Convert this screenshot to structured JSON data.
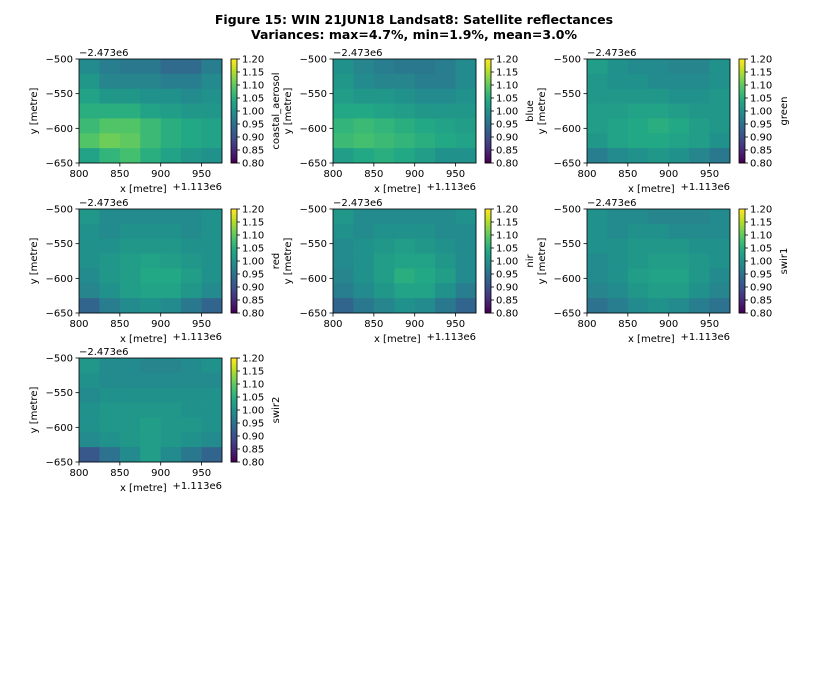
{
  "figure": {
    "title_line1": "Figure 15: WIN 21JUN18  Landsat8: Satellite reflectances",
    "title_line2": "Variances: max=4.7%, min=1.9%, mean=3.0%"
  },
  "chart_data": [
    {
      "type": "heatmap",
      "band": "coastal_aerosol",
      "xlabel": "x [metre]",
      "ylabel": "y [metre]",
      "x_offset_text": "+1.113e6",
      "y_offset_text": "−2.473e6",
      "xlim": [
        800,
        975
      ],
      "ylim": [
        -650,
        -500
      ],
      "x_ticks": [
        800,
        850,
        900,
        950
      ],
      "y_ticks": [
        -500,
        -550,
        -600,
        -650
      ],
      "colorbar": {
        "label": "coastal_aerosol",
        "vmin": 0.8,
        "vmax": 1.2,
        "ticks": [
          0.8,
          0.85,
          0.9,
          0.95,
          1.0,
          1.05,
          1.1,
          1.15,
          1.2
        ]
      },
      "values": [
        [
          0.99,
          0.97,
          0.96,
          0.96,
          0.94,
          0.94,
          0.97
        ],
        [
          1.01,
          0.98,
          0.98,
          0.98,
          0.97,
          0.97,
          0.99
        ],
        [
          1.03,
          1.01,
          1.01,
          1.0,
          1.0,
          0.99,
          1.0
        ],
        [
          1.05,
          1.05,
          1.05,
          1.03,
          1.02,
          1.01,
          1.01
        ],
        [
          1.07,
          1.09,
          1.09,
          1.07,
          1.05,
          1.04,
          1.03
        ],
        [
          1.09,
          1.11,
          1.1,
          1.07,
          1.05,
          1.04,
          1.03
        ],
        [
          1.03,
          1.06,
          1.08,
          1.05,
          1.03,
          1.01,
          1.0
        ]
      ]
    },
    {
      "type": "heatmap",
      "band": "blue",
      "xlabel": "x [metre]",
      "ylabel": "y [metre]",
      "x_offset_text": "+1.113e6",
      "y_offset_text": "−2.473e6",
      "xlim": [
        800,
        975
      ],
      "ylim": [
        -650,
        -500
      ],
      "x_ticks": [
        800,
        850,
        900,
        950
      ],
      "y_ticks": [
        -500,
        -550,
        -600,
        -650
      ],
      "colorbar": {
        "label": "blue",
        "vmin": 0.8,
        "vmax": 1.2,
        "ticks": [
          0.8,
          0.85,
          0.9,
          0.95,
          1.0,
          1.05,
          1.1,
          1.15,
          1.2
        ]
      },
      "values": [
        [
          1.0,
          0.98,
          0.97,
          0.96,
          0.96,
          0.97,
          0.99
        ],
        [
          1.01,
          0.99,
          0.98,
          0.98,
          0.97,
          0.97,
          0.99
        ],
        [
          1.02,
          1.01,
          1.01,
          1.0,
          0.99,
          0.99,
          1.0
        ],
        [
          1.04,
          1.04,
          1.03,
          1.02,
          1.01,
          1.01,
          1.01
        ],
        [
          1.06,
          1.07,
          1.06,
          1.05,
          1.04,
          1.03,
          1.02
        ],
        [
          1.07,
          1.08,
          1.07,
          1.06,
          1.05,
          1.04,
          1.03
        ],
        [
          1.02,
          1.04,
          1.05,
          1.04,
          1.02,
          1.0,
          1.0
        ]
      ]
    },
    {
      "type": "heatmap",
      "band": "green",
      "xlabel": "x [metre]",
      "ylabel": "y [metre]",
      "x_offset_text": "+1.113e6",
      "y_offset_text": "−2.473e6",
      "xlim": [
        800,
        975
      ],
      "ylim": [
        -650,
        -500
      ],
      "x_ticks": [
        800,
        850,
        900,
        950
      ],
      "y_ticks": [
        -500,
        -550,
        -600,
        -650
      ],
      "colorbar": {
        "label": "green",
        "vmin": 0.8,
        "vmax": 1.2,
        "ticks": [
          0.8,
          0.85,
          0.9,
          0.95,
          1.0,
          1.05,
          1.1,
          1.15,
          1.2
        ]
      },
      "values": [
        [
          1.02,
          1.0,
          0.99,
          0.99,
          0.98,
          0.98,
          1.0
        ],
        [
          1.01,
          1.0,
          1.0,
          0.99,
          0.99,
          0.99,
          1.0
        ],
        [
          1.01,
          1.01,
          1.01,
          1.01,
          1.0,
          1.0,
          1.01
        ],
        [
          1.02,
          1.02,
          1.03,
          1.03,
          1.02,
          1.01,
          1.01
        ],
        [
          1.02,
          1.03,
          1.04,
          1.05,
          1.04,
          1.02,
          1.01
        ],
        [
          1.01,
          1.03,
          1.04,
          1.04,
          1.03,
          1.02,
          1.0
        ],
        [
          0.97,
          0.99,
          1.0,
          1.01,
          1.0,
          0.98,
          0.96
        ]
      ]
    },
    {
      "type": "heatmap",
      "band": "red",
      "xlabel": "x [metre]",
      "ylabel": "y [metre]",
      "x_offset_text": "+1.113e6",
      "y_offset_text": "−2.473e6",
      "xlim": [
        800,
        975
      ],
      "ylim": [
        -650,
        -500
      ],
      "x_ticks": [
        800,
        850,
        900,
        950
      ],
      "y_ticks": [
        -500,
        -550,
        -600,
        -650
      ],
      "colorbar": {
        "label": "red",
        "vmin": 0.8,
        "vmax": 1.2,
        "ticks": [
          0.8,
          0.85,
          0.9,
          0.95,
          1.0,
          1.05,
          1.1,
          1.15,
          1.2
        ]
      },
      "values": [
        [
          1.01,
          0.99,
          0.99,
          0.99,
          0.99,
          0.99,
          1.0
        ],
        [
          1.0,
          0.99,
          1.0,
          1.0,
          1.0,
          0.99,
          1.0
        ],
        [
          1.0,
          1.0,
          1.01,
          1.01,
          1.01,
          1.0,
          1.0
        ],
        [
          1.0,
          1.01,
          1.02,
          1.03,
          1.02,
          1.01,
          1.0
        ],
        [
          0.99,
          1.01,
          1.02,
          1.04,
          1.04,
          1.02,
          1.0
        ],
        [
          0.98,
          1.0,
          1.02,
          1.03,
          1.03,
          1.01,
          0.99
        ],
        [
          0.93,
          0.97,
          0.99,
          1.0,
          0.99,
          0.96,
          0.93
        ]
      ]
    },
    {
      "type": "heatmap",
      "band": "nir",
      "xlabel": "x [metre]",
      "ylabel": "y [metre]",
      "x_offset_text": "+1.113e6",
      "y_offset_text": "−2.473e6",
      "xlim": [
        800,
        975
      ],
      "ylim": [
        -650,
        -500
      ],
      "x_ticks": [
        800,
        850,
        900,
        950
      ],
      "y_ticks": [
        -500,
        -550,
        -600,
        -650
      ],
      "colorbar": {
        "label": "nir",
        "vmin": 0.8,
        "vmax": 1.2,
        "ticks": [
          0.8,
          0.85,
          0.9,
          0.95,
          1.0,
          1.05,
          1.1,
          1.15,
          1.2
        ]
      },
      "values": [
        [
          1.01,
          0.99,
          0.99,
          0.99,
          0.99,
          0.99,
          1.0
        ],
        [
          1.0,
          0.99,
          1.0,
          1.0,
          1.0,
          0.99,
          0.99
        ],
        [
          0.99,
          1.0,
          1.01,
          1.02,
          1.01,
          1.0,
          0.99
        ],
        [
          0.99,
          1.0,
          1.02,
          1.03,
          1.03,
          1.01,
          0.99
        ],
        [
          0.98,
          1.0,
          1.02,
          1.05,
          1.04,
          1.02,
          0.99
        ],
        [
          0.97,
          0.99,
          1.01,
          1.03,
          1.03,
          1.0,
          0.97
        ],
        [
          0.93,
          0.96,
          0.98,
          1.0,
          0.99,
          0.96,
          0.93
        ]
      ]
    },
    {
      "type": "heatmap",
      "band": "swir1",
      "xlabel": "x [metre]",
      "ylabel": "y [metre]",
      "x_offset_text": "+1.113e6",
      "y_offset_text": "−2.473e6",
      "xlim": [
        800,
        975
      ],
      "ylim": [
        -650,
        -500
      ],
      "x_ticks": [
        800,
        850,
        900,
        950
      ],
      "y_ticks": [
        -500,
        -550,
        -600,
        -650
      ],
      "colorbar": {
        "label": "swir1",
        "vmin": 0.8,
        "vmax": 1.2,
        "ticks": [
          0.8,
          0.85,
          0.9,
          0.95,
          1.0,
          1.05,
          1.1,
          1.15,
          1.2
        ]
      },
      "values": [
        [
          1.0,
          0.99,
          0.99,
          0.98,
          0.98,
          0.98,
          0.99
        ],
        [
          1.0,
          0.99,
          1.0,
          1.0,
          0.99,
          0.99,
          0.99
        ],
        [
          1.0,
          1.0,
          1.01,
          1.01,
          1.01,
          1.0,
          1.0
        ],
        [
          0.99,
          1.0,
          1.01,
          1.02,
          1.02,
          1.01,
          1.0
        ],
        [
          0.99,
          1.0,
          1.02,
          1.03,
          1.03,
          1.01,
          0.99
        ],
        [
          0.98,
          0.99,
          1.01,
          1.02,
          1.02,
          1.0,
          0.98
        ],
        [
          0.95,
          0.97,
          0.99,
          1.0,
          0.99,
          0.97,
          0.95
        ]
      ]
    },
    {
      "type": "heatmap",
      "band": "swir2",
      "xlabel": "x [metre]",
      "ylabel": "y [metre]",
      "x_offset_text": "+1.113e6",
      "y_offset_text": "−2.473e6",
      "xlim": [
        800,
        975
      ],
      "ylim": [
        -650,
        -500
      ],
      "x_ticks": [
        800,
        850,
        900,
        950
      ],
      "y_ticks": [
        -500,
        -550,
        -600,
        -650
      ],
      "colorbar": {
        "label": "swir2",
        "vmin": 0.8,
        "vmax": 1.2,
        "ticks": [
          0.8,
          0.85,
          0.9,
          0.95,
          1.0,
          1.05,
          1.1,
          1.15,
          1.2
        ]
      },
      "values": [
        [
          1.01,
          0.99,
          0.99,
          0.98,
          0.98,
          0.99,
          1.0
        ],
        [
          1.0,
          0.99,
          0.99,
          0.99,
          0.99,
          0.99,
          0.99
        ],
        [
          0.99,
          1.0,
          1.0,
          1.0,
          1.0,
          1.0,
          1.0
        ],
        [
          1.0,
          1.01,
          1.01,
          1.01,
          1.01,
          1.0,
          1.0
        ],
        [
          1.0,
          1.01,
          1.01,
          1.02,
          1.01,
          1.01,
          1.0
        ],
        [
          0.99,
          1.0,
          1.01,
          1.02,
          1.01,
          1.0,
          0.99
        ],
        [
          0.91,
          0.95,
          0.99,
          1.02,
          0.99,
          0.96,
          0.93
        ]
      ]
    }
  ]
}
